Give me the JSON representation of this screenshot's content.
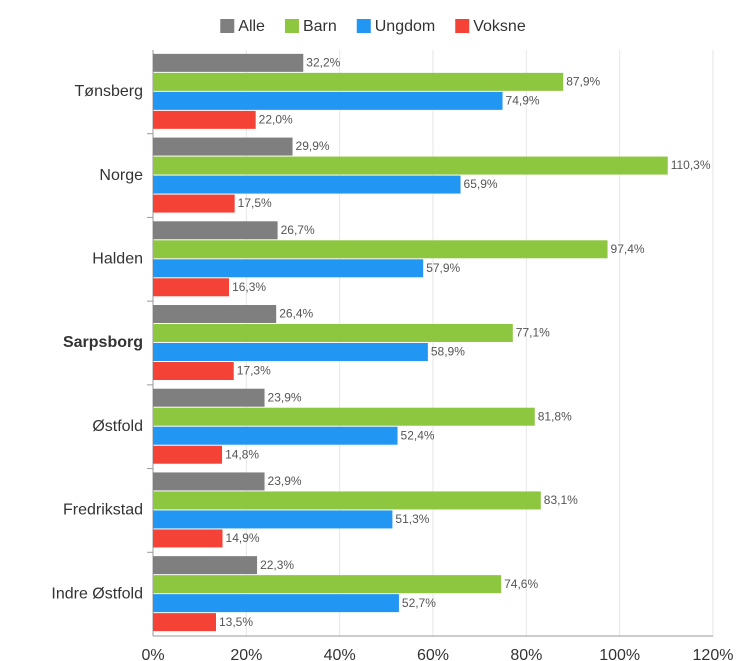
{
  "chart_data": {
    "type": "hbar",
    "categories": [
      "Tønsberg",
      "Norge",
      "Halden",
      "Sarpsborg",
      "Østfold",
      "Fredrikstad",
      "Indre Østfold"
    ],
    "highlight": 3,
    "series": [
      {
        "name": "Alle",
        "color": "#7f7f7f",
        "values": [
          32.2,
          29.9,
          26.7,
          26.4,
          23.9,
          23.9,
          22.3
        ],
        "value_labels": [
          "32,2%",
          "29,9%",
          "26,7%",
          "26,4%",
          "23,9%",
          "23,9%",
          "22,3%"
        ]
      },
      {
        "name": "Barn",
        "color": "#8dc63f",
        "values": [
          87.9,
          110.3,
          97.4,
          77.1,
          81.8,
          83.1,
          74.6
        ],
        "value_labels": [
          "87,9%",
          "110,3%",
          "97,4%",
          "77,1%",
          "81,8%",
          "83,1%",
          "74,6%"
        ]
      },
      {
        "name": "Ungdom",
        "color": "#2196f3",
        "values": [
          74.9,
          65.9,
          57.9,
          58.9,
          52.4,
          51.3,
          52.7
        ],
        "value_labels": [
          "74,9%",
          "65,9%",
          "57,9%",
          "58,9%",
          "52,4%",
          "51,3%",
          "52,7%"
        ]
      },
      {
        "name": "Voksne",
        "color": "#f44336",
        "values": [
          22.0,
          17.5,
          16.3,
          17.3,
          14.8,
          14.9,
          13.5
        ],
        "value_labels": [
          "22,0%",
          "17,5%",
          "16,3%",
          "17,3%",
          "14,8%",
          "14,9%",
          "13,5%"
        ]
      }
    ],
    "xlim": [
      0,
      120
    ],
    "xticks": [
      {
        "value": 0,
        "label": "0%"
      },
      {
        "value": 20,
        "label": "20%"
      },
      {
        "value": 40,
        "label": "40%"
      },
      {
        "value": 60,
        "label": "60%"
      },
      {
        "value": 80,
        "label": "80%"
      },
      {
        "value": 100,
        "label": "100%"
      },
      {
        "value": 120,
        "label": "120%"
      }
    ],
    "grid": true,
    "legend": "top"
  }
}
